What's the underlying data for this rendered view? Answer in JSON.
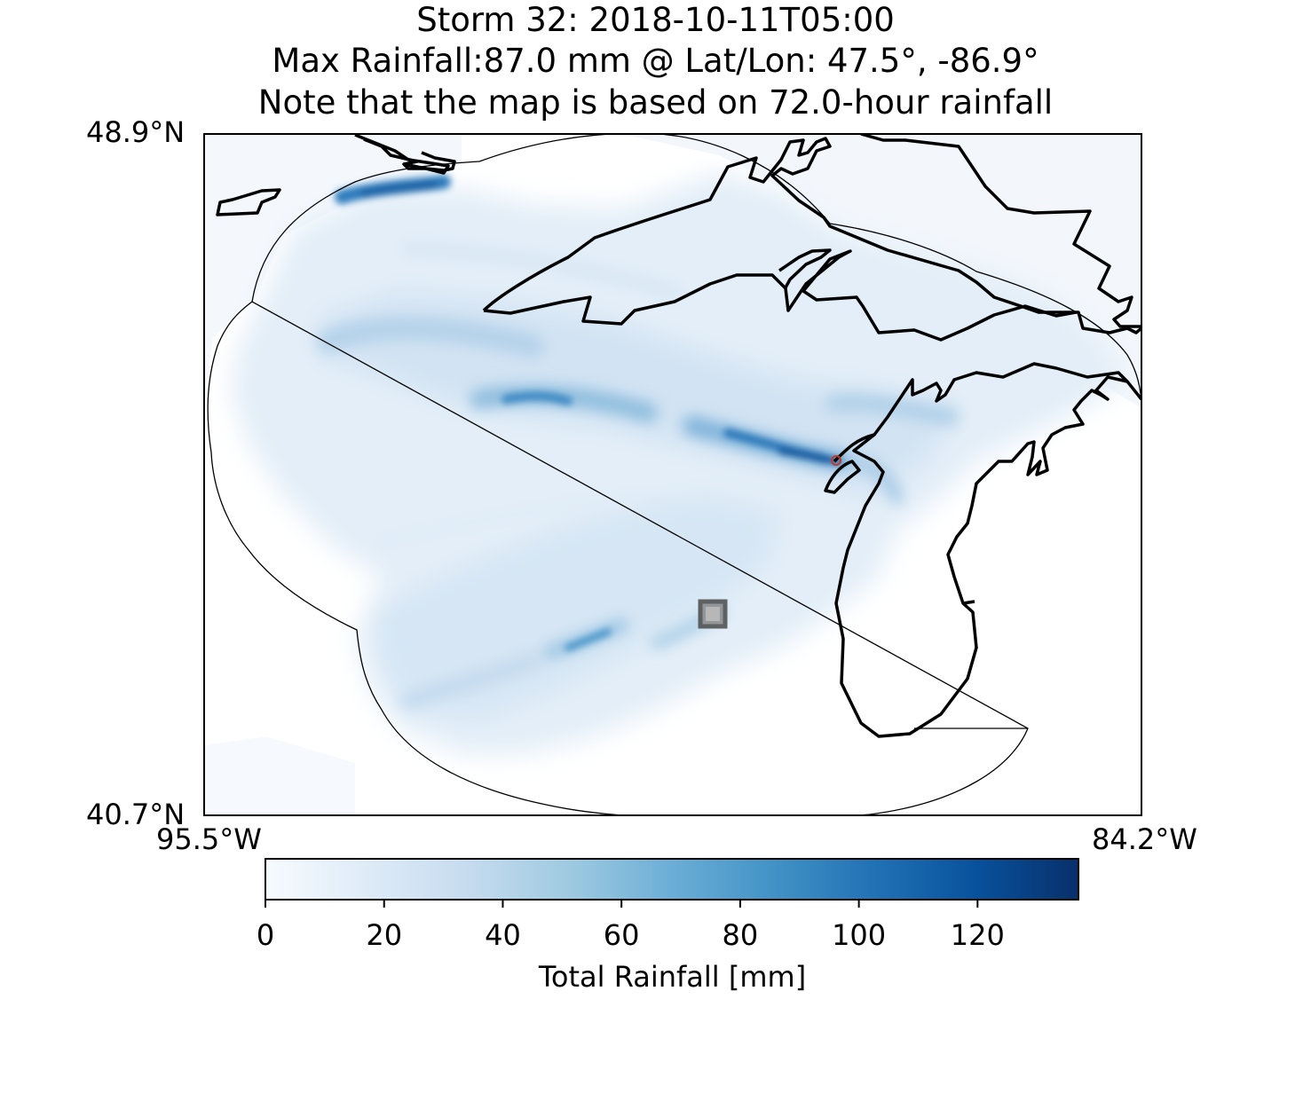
{
  "title": {
    "line1": "Storm 32: 2018-10-11T05:00",
    "line2": "Max Rainfall:87.0 mm @ Lat/Lon:  47.5°, -86.9°",
    "line3": "Note that the map is based on 72.0-hour rainfall"
  },
  "map": {
    "lat_top_label": "48.9°N",
    "lat_bottom_label": "40.7°N",
    "lon_left_label": "95.5°W",
    "lon_right_label": "84.2°W",
    "extent": {
      "lat_min": 40.7,
      "lat_max": 48.9,
      "lon_min": -95.5,
      "lon_max": -84.2
    },
    "max_point": {
      "lat": 47.5,
      "lon": -86.9,
      "value_mm": 87.0
    },
    "colors": {
      "coastline": "#000000",
      "max_marker": "#c0392b",
      "box_marker": "#555555"
    }
  },
  "colorbar": {
    "label": "Total Rainfall [mm]",
    "ticks": [
      "0",
      "20",
      "40",
      "60",
      "80",
      "100",
      "120"
    ],
    "tick_values": [
      0,
      20,
      40,
      60,
      80,
      100,
      120
    ],
    "range": [
      0,
      137
    ],
    "colormap": [
      "#f7fbff",
      "#deebf7",
      "#c6dbef",
      "#9ecae1",
      "#6baed6",
      "#4292c6",
      "#2171b5",
      "#08519c",
      "#08306b"
    ]
  }
}
